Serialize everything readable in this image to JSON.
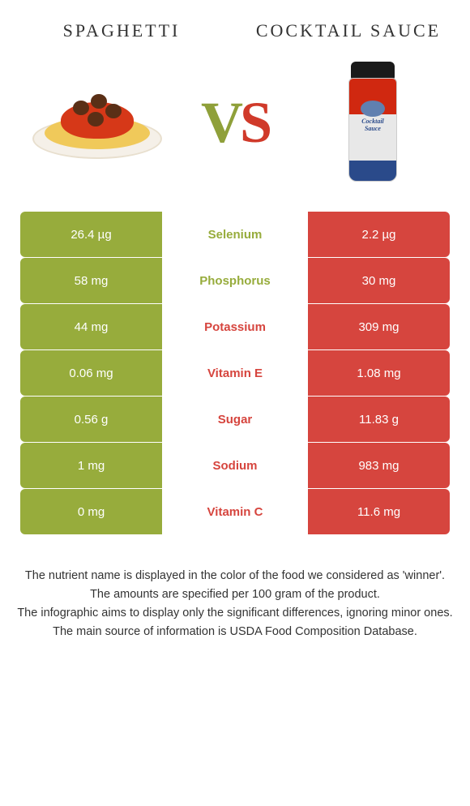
{
  "colors": {
    "left_bg": "#97ac3c",
    "right_bg": "#d6453e",
    "left_text": "#97ac3c",
    "right_text": "#d6453e"
  },
  "foods": {
    "left": {
      "title": "SPAGHETTI"
    },
    "right": {
      "title": "COCKTAIL SAUCE"
    }
  },
  "vs": "VS",
  "nutrients": [
    {
      "name": "Selenium",
      "left": "26.4 µg",
      "right": "2.2 µg",
      "winner": "left"
    },
    {
      "name": "Phosphorus",
      "left": "58 mg",
      "right": "30 mg",
      "winner": "left"
    },
    {
      "name": "Potassium",
      "left": "44 mg",
      "right": "309 mg",
      "winner": "right"
    },
    {
      "name": "Vitamin E",
      "left": "0.06 mg",
      "right": "1.08 mg",
      "winner": "right"
    },
    {
      "name": "Sugar",
      "left": "0.56 g",
      "right": "11.83 g",
      "winner": "right"
    },
    {
      "name": "Sodium",
      "left": "1 mg",
      "right": "983 mg",
      "winner": "right"
    },
    {
      "name": "Vitamin C",
      "left": "0 mg",
      "right": "11.6 mg",
      "winner": "right"
    }
  ],
  "footnotes": [
    "The nutrient name is displayed in the color of the food we considered as 'winner'.",
    "The amounts are specified per 100 gram of the product.",
    "The infographic aims to display only the significant differences, ignoring minor ones.",
    "The main source of information is USDA Food Composition Database."
  ]
}
